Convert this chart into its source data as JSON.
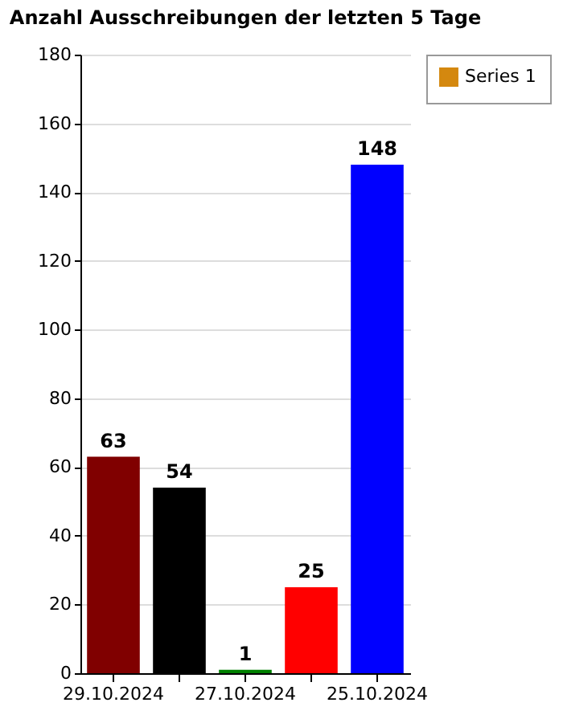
{
  "chart_data": {
    "type": "bar",
    "title": "Anzahl Ausschreibungen der letzten 5 Tage",
    "categories": [
      "29.10.2024",
      null,
      "27.10.2024",
      null,
      "25.10.2024"
    ],
    "series": [
      {
        "name": "Series 1",
        "color": "#d4880f",
        "colors": [
          "#800000",
          "#000000",
          "#008000",
          "#ff0000",
          "#0000ff"
        ],
        "values": [
          63,
          54,
          1,
          25,
          148
        ]
      }
    ],
    "ylim": [
      0,
      180
    ],
    "yticks": [
      0,
      20,
      40,
      60,
      80,
      100,
      120,
      140,
      160,
      180
    ],
    "grid": "y",
    "legend": "top right",
    "data_labels": true
  }
}
